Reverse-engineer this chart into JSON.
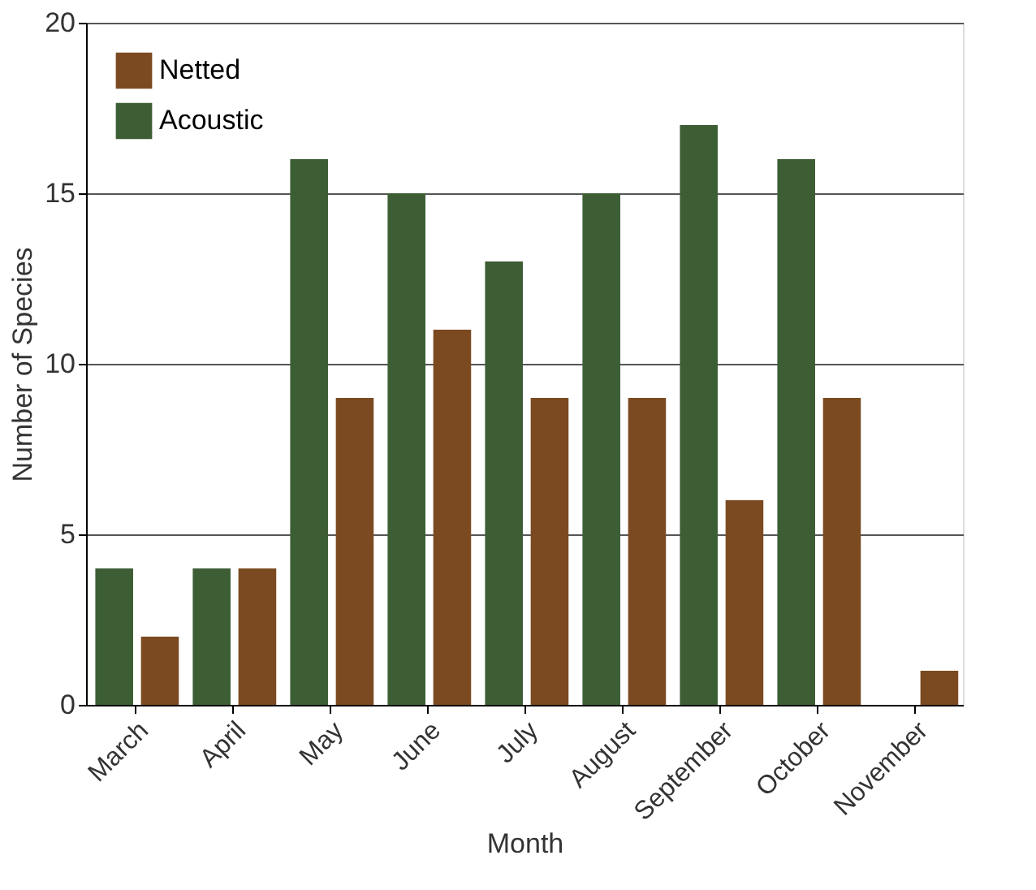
{
  "chart_data": {
    "type": "bar",
    "xlabel": "Month",
    "ylabel": "Number of Species",
    "categories": [
      "March",
      "April",
      "May",
      "June",
      "July",
      "August",
      "September",
      "October",
      "November"
    ],
    "series": [
      {
        "name": "Netted",
        "color": "#7b4a20",
        "values": [
          2,
          4,
          9,
          11,
          9,
          9,
          6,
          9,
          1
        ]
      },
      {
        "name": "Acoustic",
        "color": "#3d5e35",
        "values": [
          4,
          4,
          16,
          15,
          13,
          15,
          17,
          16,
          null
        ]
      }
    ],
    "ylim": [
      0,
      20
    ],
    "yticks": [
      0,
      5,
      10,
      15,
      20
    ],
    "grid": "y",
    "legend": "top left"
  }
}
